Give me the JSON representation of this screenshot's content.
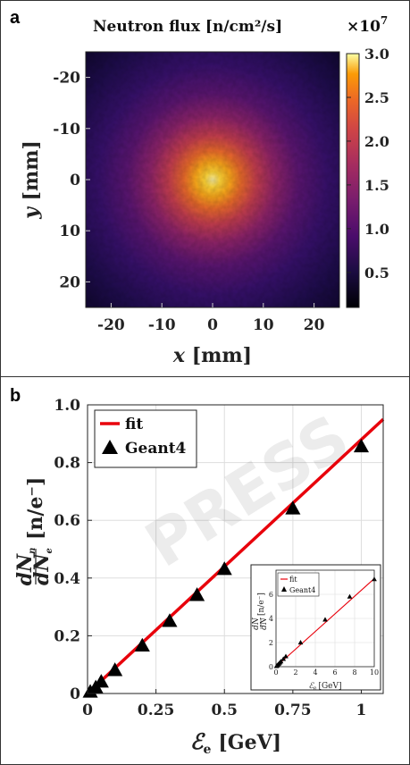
{
  "colors": {
    "fit": "#e8000b",
    "marker": "#000000",
    "grid": "#dddddd"
  },
  "panel_a": {
    "letter": "a",
    "title": "Neutron flux [n/cm²/s]",
    "colorbar_exponent_base": "×10",
    "colorbar_exponent": "7",
    "xlabel_var": "x",
    "xlabel_unit": "[mm]",
    "ylabel_var": "y",
    "ylabel_unit": "[mm]"
  },
  "panel_b": {
    "letter": "b",
    "watermark": "PRESS",
    "ylabel_frac_num": "dN",
    "ylabel_frac_num_sub": "n",
    "ylabel_frac_den": "dN",
    "ylabel_frac_den_sub": "e",
    "ylabel_unit": "[n/e⁻]",
    "xlabel_var": "ℰ",
    "xlabel_sub": "e",
    "xlabel_unit": "[GeV]",
    "inset_ylabel_unit": "[n/e⁻]",
    "inset_xlabel_unit": "[GeV]"
  },
  "chart_data": [
    {
      "type": "heatmap",
      "title": "Neutron flux [n/cm²/s]",
      "xlabel": "x [mm]",
      "ylabel": "y [mm]",
      "xlim": [
        -25,
        25
      ],
      "ylim": [
        -25,
        25
      ],
      "y_reversed": true,
      "x_ticks": [
        -20,
        -10,
        0,
        10,
        20
      ],
      "y_ticks": [
        -20,
        -10,
        0,
        10,
        20
      ],
      "colormap": "inferno",
      "colorbar_range": [
        0.1,
        3.0
      ],
      "colorbar_ticks": [
        "3.0",
        "2.5",
        "2.0",
        "1.5",
        "1.0",
        "0.5"
      ],
      "colorbar_scale": "×10^7",
      "peak": {
        "x": 0,
        "y": 0,
        "value": 3.0
      }
    },
    {
      "type": "line",
      "xlabel": "ℰe [GeV]",
      "ylabel": "dNn/dNe [n/e⁻]",
      "xlim": [
        0,
        1.08
      ],
      "ylim": [
        0,
        1.0
      ],
      "x_ticks": [
        "0",
        "0.25",
        "0.5",
        "0.75",
        "1"
      ],
      "y_ticks": [
        "0",
        "0.2",
        "0.4",
        "0.6",
        "0.8",
        "1.0"
      ],
      "grid": true,
      "legend_position": "top-left",
      "series": [
        {
          "name": "fit",
          "style": "line",
          "x": [
            0,
            1.08
          ],
          "y": [
            0,
            0.95
          ]
        },
        {
          "name": "Geant4",
          "style": "triangle",
          "x": [
            0.01,
            0.03,
            0.05,
            0.1,
            0.2,
            0.3,
            0.4,
            0.5,
            0.75,
            1.0
          ],
          "y": [
            0.005,
            0.02,
            0.04,
            0.08,
            0.165,
            0.25,
            0.34,
            0.43,
            0.64,
            0.855
          ]
        }
      ]
    },
    {
      "type": "line",
      "inset": true,
      "xlabel": "ℰe [GeV]",
      "ylabel": "dNn/dNe [n/e⁻]",
      "xlim": [
        0,
        10
      ],
      "ylim": [
        0,
        8
      ],
      "x_ticks": [
        "0",
        "2",
        "4",
        "6",
        "8",
        "10"
      ],
      "y_ticks": [
        "0",
        "2",
        "4",
        "6"
      ],
      "grid": true,
      "legend_position": "top-left",
      "series": [
        {
          "name": "fit",
          "style": "line",
          "x": [
            0,
            10
          ],
          "y": [
            0,
            7.3
          ]
        },
        {
          "name": "Geant4",
          "style": "triangle",
          "x": [
            0.05,
            0.1,
            0.2,
            0.3,
            0.4,
            0.5,
            0.75,
            1.0,
            2.5,
            5.0,
            7.5,
            10.0
          ],
          "y": [
            0.04,
            0.08,
            0.165,
            0.25,
            0.34,
            0.43,
            0.64,
            0.855,
            2.0,
            3.9,
            5.8,
            7.25
          ]
        }
      ]
    }
  ]
}
